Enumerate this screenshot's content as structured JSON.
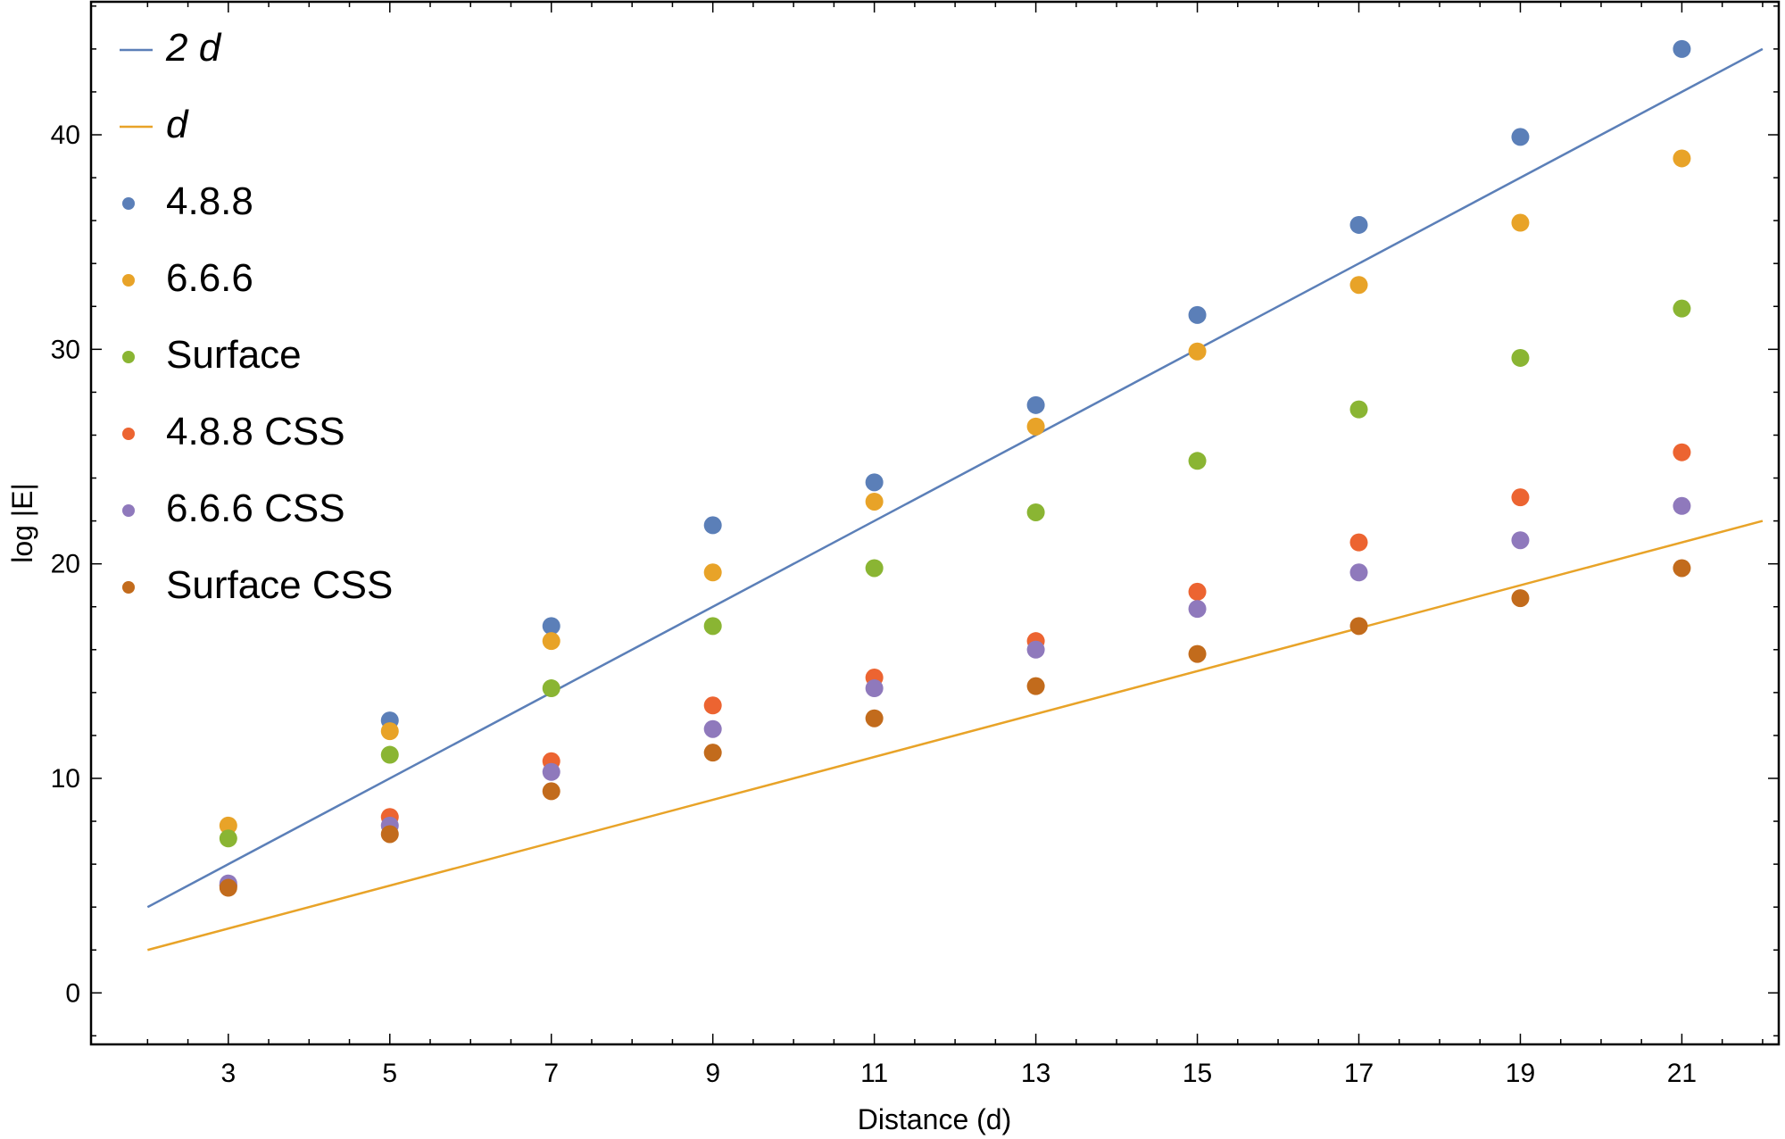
{
  "chart_data": {
    "type": "scatter",
    "xlabel": "Distance (d)",
    "ylabel": "log |E|",
    "xlim": [
      1.3,
      22.2
    ],
    "ylim": [
      -2.4,
      46.2
    ],
    "x_ticks": [
      3,
      5,
      7,
      9,
      11,
      13,
      15,
      17,
      19,
      21
    ],
    "y_ticks": [
      0,
      10,
      20,
      30,
      40
    ],
    "grid": false,
    "legend_position": "top-left",
    "lines": [
      {
        "name": "2 d",
        "color": "#5b7fb8",
        "x": [
          2,
          22
        ],
        "y": [
          4,
          44
        ]
      },
      {
        "name": "d",
        "color": "#e8a328",
        "x": [
          2,
          22
        ],
        "y": [
          2,
          22
        ]
      }
    ],
    "series": [
      {
        "name": "4.8.8",
        "color": "#5b7fb8",
        "x": [
          3,
          5,
          7,
          9,
          11,
          13,
          15,
          17,
          19,
          21
        ],
        "y": [
          5.0,
          12.7,
          17.1,
          21.8,
          23.8,
          27.4,
          31.6,
          35.8,
          39.9,
          44.0
        ]
      },
      {
        "name": "6.6.6",
        "color": "#e8a328",
        "x": [
          3,
          5,
          7,
          9,
          11,
          13,
          15,
          17,
          19,
          21
        ],
        "y": [
          7.8,
          12.2,
          16.4,
          19.6,
          22.9,
          26.4,
          29.9,
          33.0,
          35.9,
          38.9
        ]
      },
      {
        "name": "Surface",
        "color": "#8ab533",
        "x": [
          3,
          5,
          7,
          9,
          11,
          13,
          15,
          17,
          19,
          21
        ],
        "y": [
          7.2,
          11.1,
          14.2,
          17.1,
          19.8,
          22.4,
          24.8,
          27.2,
          29.6,
          31.9
        ]
      },
      {
        "name": "4.8.8 CSS",
        "color": "#ec6431",
        "x": [
          3,
          5,
          7,
          9,
          11,
          13,
          15,
          17,
          19,
          21
        ],
        "y": [
          5.0,
          8.2,
          10.8,
          13.4,
          14.7,
          16.4,
          18.7,
          21.0,
          23.1,
          25.2
        ]
      },
      {
        "name": "6.6.6 CSS",
        "color": "#8f79bc",
        "x": [
          3,
          5,
          7,
          9,
          11,
          13,
          15,
          17,
          19,
          21
        ],
        "y": [
          5.1,
          7.8,
          10.3,
          12.3,
          14.2,
          16.0,
          17.9,
          19.6,
          21.1,
          22.7
        ]
      },
      {
        "name": "Surface CSS",
        "color": "#c26b1c",
        "x": [
          3,
          5,
          7,
          9,
          11,
          13,
          15,
          17,
          19,
          21
        ],
        "y": [
          4.9,
          7.4,
          9.4,
          11.2,
          12.8,
          14.3,
          15.8,
          17.1,
          18.4,
          19.8
        ]
      }
    ]
  }
}
